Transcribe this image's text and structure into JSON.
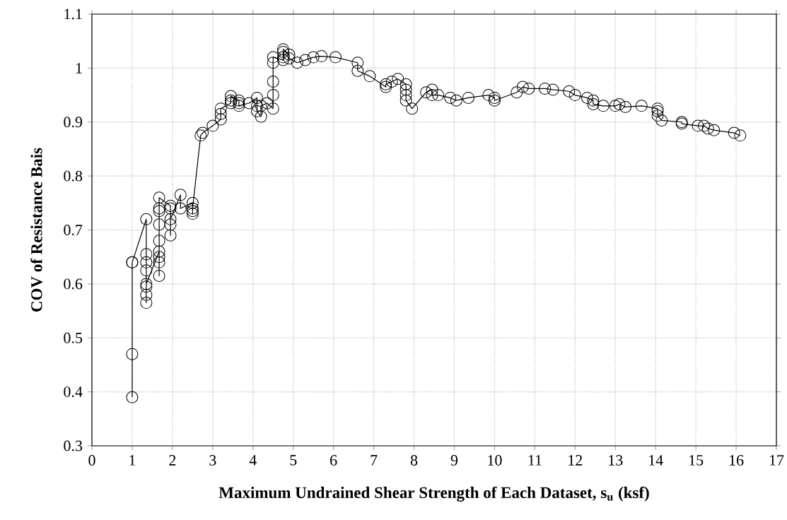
{
  "chart_data": {
    "type": "line",
    "xlabel": "Maximum Undrained Shear Strength of Each Dataset, s$_{u}$ (ksf)",
    "ylabel": "COV of Resistance Bais",
    "x": [
      1.0,
      1.0,
      1.0,
      1.0,
      1.35,
      1.35,
      1.35,
      1.35,
      1.35,
      1.35,
      1.35,
      1.35,
      1.67,
      1.67,
      1.67,
      1.67,
      1.67,
      1.67,
      1.67,
      1.67,
      1.67,
      1.95,
      1.95,
      1.95,
      1.95,
      1.95,
      2.2,
      2.2,
      2.5,
      2.5,
      2.5,
      2.5,
      2.7,
      2.75,
      3.0,
      3.2,
      3.2,
      3.2,
      3.45,
      3.45,
      3.45,
      3.65,
      3.65,
      3.65,
      3.9,
      4.1,
      4.1,
      4.1,
      4.2,
      4.2,
      4.35,
      4.5,
      4.5,
      4.5,
      4.5,
      4.5,
      4.75,
      4.75,
      4.75,
      4.75,
      4.9,
      4.9,
      5.1,
      5.3,
      5.5,
      5.7,
      6.05,
      6.6,
      6.6,
      6.9,
      7.3,
      7.3,
      7.45,
      7.6,
      7.8,
      7.8,
      7.8,
      7.8,
      7.95,
      8.3,
      8.45,
      8.45,
      8.6,
      8.9,
      9.05,
      9.35,
      9.85,
      10.0,
      10.0,
      10.55,
      10.7,
      10.85,
      11.25,
      11.45,
      11.85,
      12.0,
      12.3,
      12.45,
      12.45,
      12.7,
      13.0,
      13.1,
      13.25,
      13.65,
      14.05,
      14.05,
      14.05,
      14.15,
      14.65,
      14.65,
      15.05,
      15.2,
      15.3,
      15.45,
      15.95,
      16.1
    ],
    "values": [
      0.39,
      0.47,
      0.64,
      0.64,
      0.72,
      0.655,
      0.64,
      0.625,
      0.565,
      0.58,
      0.595,
      0.6,
      0.66,
      0.615,
      0.64,
      0.65,
      0.68,
      0.71,
      0.735,
      0.74,
      0.76,
      0.745,
      0.74,
      0.69,
      0.71,
      0.72,
      0.765,
      0.74,
      0.75,
      0.73,
      0.735,
      0.74,
      0.875,
      0.88,
      0.893,
      0.905,
      0.915,
      0.925,
      0.935,
      0.94,
      0.948,
      0.94,
      0.935,
      0.93,
      0.935,
      0.945,
      0.93,
      0.92,
      0.91,
      0.93,
      0.935,
      0.925,
      0.95,
      0.975,
      1.01,
      1.02,
      1.015,
      1.02,
      1.03,
      1.035,
      1.025,
      1.018,
      1.01,
      1.015,
      1.02,
      1.022,
      1.02,
      1.01,
      0.995,
      0.985,
      0.965,
      0.97,
      0.975,
      0.98,
      0.97,
      0.96,
      0.95,
      0.94,
      0.925,
      0.955,
      0.96,
      0.95,
      0.95,
      0.945,
      0.94,
      0.945,
      0.95,
      0.945,
      0.94,
      0.955,
      0.965,
      0.962,
      0.962,
      0.96,
      0.957,
      0.95,
      0.945,
      0.94,
      0.933,
      0.93,
      0.93,
      0.933,
      0.928,
      0.93,
      0.925,
      0.92,
      0.912,
      0.903,
      0.9,
      0.897,
      0.893,
      0.893,
      0.888,
      0.885,
      0.88,
      0.875
    ],
    "color": "#000000",
    "marker": "circle",
    "line_style": "solid",
    "grid": true,
    "xlim": [
      0,
      17
    ],
    "ylim": [
      0.3,
      1.1
    ],
    "xticks": [
      0,
      1,
      2,
      3,
      4,
      5,
      6,
      7,
      8,
      9,
      10,
      11,
      12,
      13,
      14,
      15,
      16,
      17
    ],
    "yticks": [
      0.3,
      0.4,
      0.5,
      0.6,
      0.7,
      0.8,
      0.9,
      1,
      1.1
    ]
  }
}
